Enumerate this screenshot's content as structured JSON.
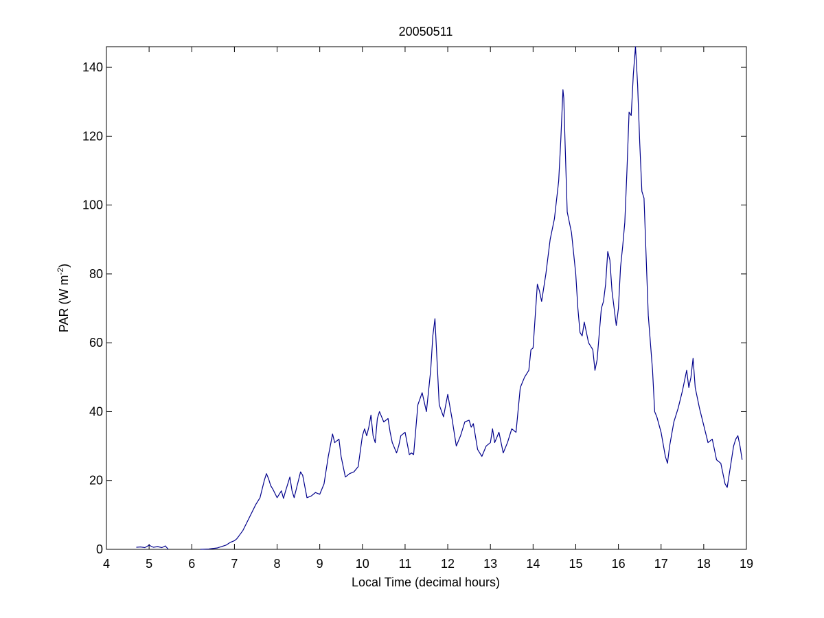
{
  "chart_data": {
    "type": "line",
    "title": "20050511",
    "xlabel": "Local Time (decimal hours)",
    "ylabel": "PAR (W m",
    "ylabel_sup": "-2",
    "ylabel_close": ")",
    "xlim": [
      4,
      19
    ],
    "ylim": [
      0,
      146
    ],
    "xticks": [
      4,
      5,
      6,
      7,
      8,
      9,
      10,
      11,
      12,
      13,
      14,
      15,
      16,
      17,
      18,
      19
    ],
    "yticks": [
      0,
      20,
      40,
      60,
      80,
      100,
      120,
      140
    ],
    "grid": false,
    "line_color": "#00008B",
    "series": [
      {
        "x": [
          4.7,
          4.8,
          4.9,
          5.0,
          5.1,
          5.2,
          5.3,
          5.38,
          5.45
        ],
        "y": [
          0.6,
          0.7,
          0.5,
          1.2,
          0.6,
          0.8,
          0.5,
          1.0,
          0.0
        ]
      },
      {
        "x": [
          6.2,
          6.4,
          6.6,
          6.8,
          6.9,
          7.0,
          7.05,
          7.1,
          7.2,
          7.3,
          7.4,
          7.5,
          7.6,
          7.7,
          7.75,
          7.8,
          7.85,
          7.9,
          8.0,
          8.1,
          8.15,
          8.2,
          8.3,
          8.35,
          8.4,
          8.5,
          8.55,
          8.6,
          8.7,
          8.8,
          8.9,
          9.0,
          9.1,
          9.2,
          9.3,
          9.35,
          9.45,
          9.5,
          9.6,
          9.7,
          9.8,
          9.9,
          10.0,
          10.05,
          10.1,
          10.15,
          10.2,
          10.25,
          10.3,
          10.35,
          10.4,
          10.5,
          10.6,
          10.65,
          10.7,
          10.8,
          10.85,
          10.9,
          11.0,
          11.1,
          11.15,
          11.2,
          11.3,
          11.4,
          11.5,
          11.6,
          11.65,
          11.7,
          11.8,
          11.9,
          12.0,
          12.1,
          12.2,
          12.3,
          12.4,
          12.5,
          12.55,
          12.6,
          12.7,
          12.8,
          12.9,
          13.0,
          13.05,
          13.1,
          13.2,
          13.3,
          13.4,
          13.5,
          13.6,
          13.7,
          13.8,
          13.9,
          13.95,
          14.0,
          14.1,
          14.15,
          14.2,
          14.3,
          14.4,
          14.5,
          14.6,
          14.65,
          14.7,
          14.72,
          14.75,
          14.8,
          14.9,
          15.0,
          15.05,
          15.1,
          15.15,
          15.2,
          15.25,
          15.3,
          15.4,
          15.45,
          15.5,
          15.6,
          15.65,
          15.7,
          15.75,
          15.8,
          15.85,
          15.9,
          15.95,
          16.0,
          16.05,
          16.1,
          16.15,
          16.2,
          16.25,
          16.3,
          16.35,
          16.4,
          16.45,
          16.5,
          16.55,
          16.6,
          16.65,
          16.7,
          16.75,
          16.8,
          16.85,
          16.9,
          17.0,
          17.1,
          17.15,
          17.2,
          17.3,
          17.4,
          17.5,
          17.6,
          17.65,
          17.7,
          17.75,
          17.8,
          17.9,
          18.0,
          18.1,
          18.2,
          18.3,
          18.4,
          18.5,
          18.55,
          18.6,
          18.7,
          18.75,
          18.8,
          18.85,
          18.9
        ],
        "y": [
          0.0,
          0.1,
          0.4,
          1.2,
          2.0,
          2.5,
          3.0,
          3.8,
          5.5,
          8.0,
          10.5,
          13.0,
          15.0,
          20.0,
          22.0,
          20.5,
          18.5,
          17.5,
          15.0,
          17.0,
          14.8,
          17.0,
          21.0,
          17.0,
          15.0,
          20.0,
          22.5,
          21.5,
          15.0,
          15.5,
          16.5,
          16.0,
          19.0,
          27.0,
          33.5,
          31.0,
          32.0,
          27.0,
          21.0,
          22.0,
          22.5,
          24.0,
          33.0,
          35.0,
          33.0,
          35.5,
          39.0,
          33.0,
          31.0,
          38.0,
          40.0,
          37.0,
          38.0,
          34.0,
          31.0,
          28.0,
          30.0,
          33.0,
          34.0,
          27.5,
          28.0,
          27.5,
          42.0,
          45.5,
          40.0,
          52.0,
          62.0,
          67.0,
          42.0,
          38.5,
          45.0,
          38.0,
          30.0,
          33.0,
          37.0,
          37.5,
          35.5,
          36.5,
          29.0,
          27.0,
          30.0,
          31.0,
          35.0,
          31.0,
          34.0,
          28.0,
          31.0,
          35.0,
          34.0,
          47.0,
          50.0,
          52.0,
          58.0,
          58.5,
          77.0,
          75.0,
          72.0,
          80.0,
          90.0,
          96.0,
          107.0,
          119.0,
          133.5,
          131.0,
          118.0,
          98.0,
          92.0,
          80.0,
          70.0,
          63.0,
          62.0,
          66.0,
          63.0,
          60.0,
          58.0,
          52.0,
          55.0,
          70.0,
          72.0,
          77.0,
          86.5,
          84.0,
          75.0,
          70.0,
          65.0,
          70.0,
          82.0,
          88.0,
          95.0,
          110.0,
          127.0,
          126.0,
          138.0,
          146.0,
          135.0,
          118.0,
          104.0,
          102.0,
          85.0,
          68.0,
          60.0,
          52.0,
          40.0,
          38.5,
          34.0,
          27.0,
          25.0,
          30.0,
          37.0,
          41.0,
          46.0,
          52.0,
          47.0,
          50.0,
          55.5,
          47.0,
          41.0,
          36.0,
          31.0,
          32.0,
          26.0,
          25.0,
          19.0,
          18.0,
          22.0,
          30.0,
          32.0,
          33.0,
          30.0,
          26.0
        ]
      }
    ]
  }
}
